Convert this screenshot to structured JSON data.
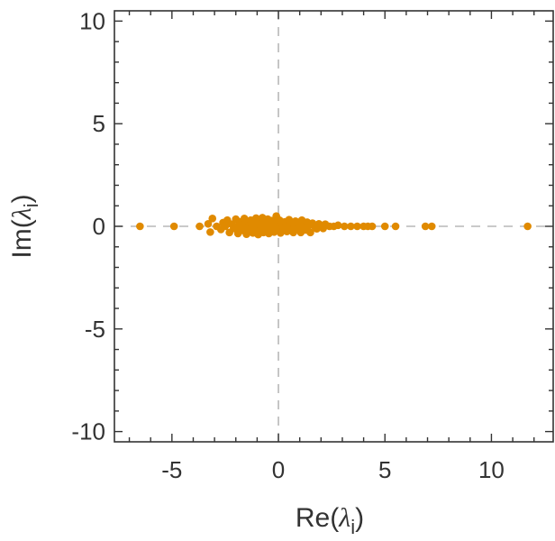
{
  "chart_data": {
    "type": "scatter",
    "xlabel": {
      "prefix": "Re(",
      "symbol": "λ",
      "sub": "i",
      "suffix": ")"
    },
    "ylabel": {
      "prefix": "Im(",
      "symbol": "λ",
      "sub": "i",
      "suffix": ")"
    },
    "xlim": [
      -7.7,
      12.9
    ],
    "ylim": [
      -10.5,
      10.5
    ],
    "xticks": [
      -5,
      0,
      5,
      10
    ],
    "xtick_labels": [
      "-5",
      "0",
      "5",
      "10"
    ],
    "yticks": [
      -10,
      -5,
      0,
      5,
      10
    ],
    "ytick_labels": [
      "-10",
      "-5",
      "0",
      "5",
      "10"
    ],
    "grid": false,
    "zero_lines": true,
    "marker_color": "#e08a00",
    "zero_line_color": "#b8b8b8",
    "series": [
      {
        "points": [
          [
            -6.5,
            0.0
          ],
          [
            -4.9,
            0.0
          ],
          [
            -3.7,
            0.0
          ],
          [
            -3.3,
            0.12
          ],
          [
            -3.2,
            -0.28
          ],
          [
            -3.1,
            0.38
          ],
          [
            -2.9,
            0.0
          ],
          [
            -2.7,
            -0.15
          ],
          [
            -2.6,
            0.18
          ],
          [
            -2.5,
            0.0
          ],
          [
            -2.4,
            0.3
          ],
          [
            -2.3,
            -0.3
          ],
          [
            -2.2,
            0.1
          ],
          [
            -2.1,
            -0.1
          ],
          [
            -2.0,
            0.35
          ],
          [
            -1.95,
            0.0
          ],
          [
            -1.9,
            -0.35
          ],
          [
            -1.8,
            0.22
          ],
          [
            -1.75,
            -0.2
          ],
          [
            -1.7,
            0.05
          ],
          [
            -1.6,
            0.38
          ],
          [
            -1.55,
            -0.05
          ],
          [
            -1.5,
            -0.38
          ],
          [
            -1.45,
            0.18
          ],
          [
            -1.4,
            0.0
          ],
          [
            -1.35,
            -0.22
          ],
          [
            -1.3,
            0.3
          ],
          [
            -1.25,
            0.08
          ],
          [
            -1.2,
            -0.32
          ],
          [
            -1.15,
            0.15
          ],
          [
            -1.1,
            -0.12
          ],
          [
            -1.05,
            0.4
          ],
          [
            -1.0,
            0.0
          ],
          [
            -0.95,
            -0.4
          ],
          [
            -0.9,
            0.25
          ],
          [
            -0.85,
            -0.18
          ],
          [
            -0.8,
            0.1
          ],
          [
            -0.75,
            0.42
          ],
          [
            -0.7,
            -0.3
          ],
          [
            -0.65,
            0.0
          ],
          [
            -0.6,
            0.2
          ],
          [
            -0.55,
            -0.08
          ],
          [
            -0.5,
            0.35
          ],
          [
            -0.45,
            -0.35
          ],
          [
            -0.4,
            0.05
          ],
          [
            -0.35,
            -0.2
          ],
          [
            -0.3,
            0.28
          ],
          [
            -0.25,
            0.0
          ],
          [
            -0.2,
            -0.28
          ],
          [
            -0.15,
            0.15
          ],
          [
            -0.1,
            0.5
          ],
          [
            -0.05,
            -0.15
          ],
          [
            0.0,
            0.0
          ],
          [
            0.05,
            0.3
          ],
          [
            0.1,
            -0.32
          ],
          [
            0.15,
            0.12
          ],
          [
            0.2,
            0.0
          ],
          [
            0.25,
            -0.1
          ],
          [
            0.3,
            0.22
          ],
          [
            0.4,
            -0.25
          ],
          [
            0.45,
            0.05
          ],
          [
            0.5,
            0.32
          ],
          [
            0.55,
            -0.05
          ],
          [
            0.6,
            0.15
          ],
          [
            0.7,
            -0.3
          ],
          [
            0.75,
            0.0
          ],
          [
            0.8,
            0.25
          ],
          [
            0.9,
            -0.15
          ],
          [
            1.0,
            0.1
          ],
          [
            1.05,
            -0.3
          ],
          [
            1.1,
            0.3
          ],
          [
            1.2,
            0.0
          ],
          [
            1.3,
            -0.18
          ],
          [
            1.35,
            0.2
          ],
          [
            1.45,
            0.05
          ],
          [
            1.5,
            -0.3
          ],
          [
            1.6,
            0.15
          ],
          [
            1.7,
            0.0
          ],
          [
            1.8,
            -0.12
          ],
          [
            1.9,
            0.12
          ],
          [
            2.0,
            0.0
          ],
          [
            2.1,
            -0.1
          ],
          [
            2.2,
            0.1
          ],
          [
            2.4,
            0.0
          ],
          [
            2.6,
            0.0
          ],
          [
            2.8,
            0.05
          ],
          [
            3.1,
            0.0
          ],
          [
            3.4,
            0.0
          ],
          [
            3.7,
            0.0
          ],
          [
            4.0,
            0.0
          ],
          [
            4.2,
            0.0
          ],
          [
            4.4,
            0.0
          ],
          [
            5.0,
            0.0
          ],
          [
            5.5,
            0.0
          ],
          [
            6.9,
            0.0
          ],
          [
            7.2,
            0.0
          ],
          [
            11.7,
            0.0
          ]
        ]
      }
    ]
  }
}
